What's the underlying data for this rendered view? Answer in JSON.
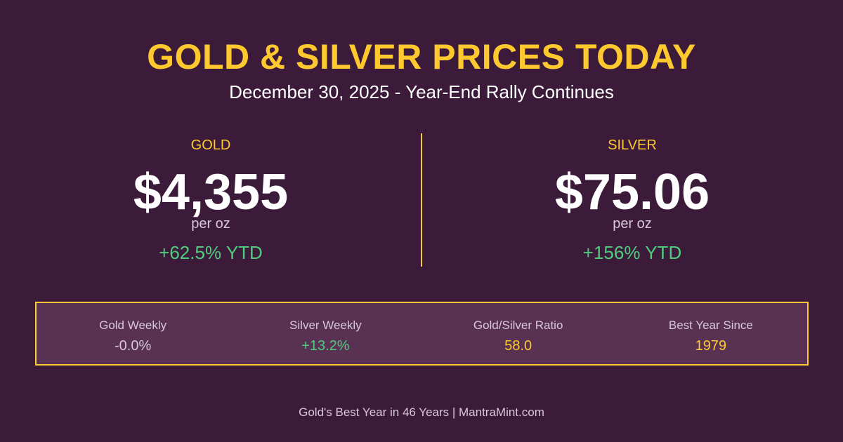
{
  "header": {
    "title": "GOLD & SILVER PRICES TODAY",
    "subtitle": "December 30, 2025 - Year-End Rally Continues"
  },
  "gold": {
    "label": "GOLD",
    "price": "$4,355",
    "unit": "per oz",
    "ytd": "+62.5% YTD"
  },
  "silver": {
    "label": "SILVER",
    "price": "$75.06",
    "unit": "per oz",
    "ytd": "+156% YTD"
  },
  "stats": [
    {
      "label": "Gold Weekly",
      "value": "-0.0%",
      "color": "#d8c8d8"
    },
    {
      "label": "Silver Weekly",
      "value": "+13.2%",
      "color": "#4fcd7d"
    },
    {
      "label": "Gold/Silver Ratio",
      "value": "58.0",
      "color": "#fdc92e"
    },
    {
      "label": "Best Year Since",
      "value": "1979",
      "color": "#fdc92e"
    }
  ],
  "footer": "Gold's Best Year in 46 Years | MantraMint.com",
  "colors": {
    "background": "#3c1b3a",
    "accent": "#fdc92e",
    "positive": "#4fcd7d",
    "panel": "#583153"
  }
}
